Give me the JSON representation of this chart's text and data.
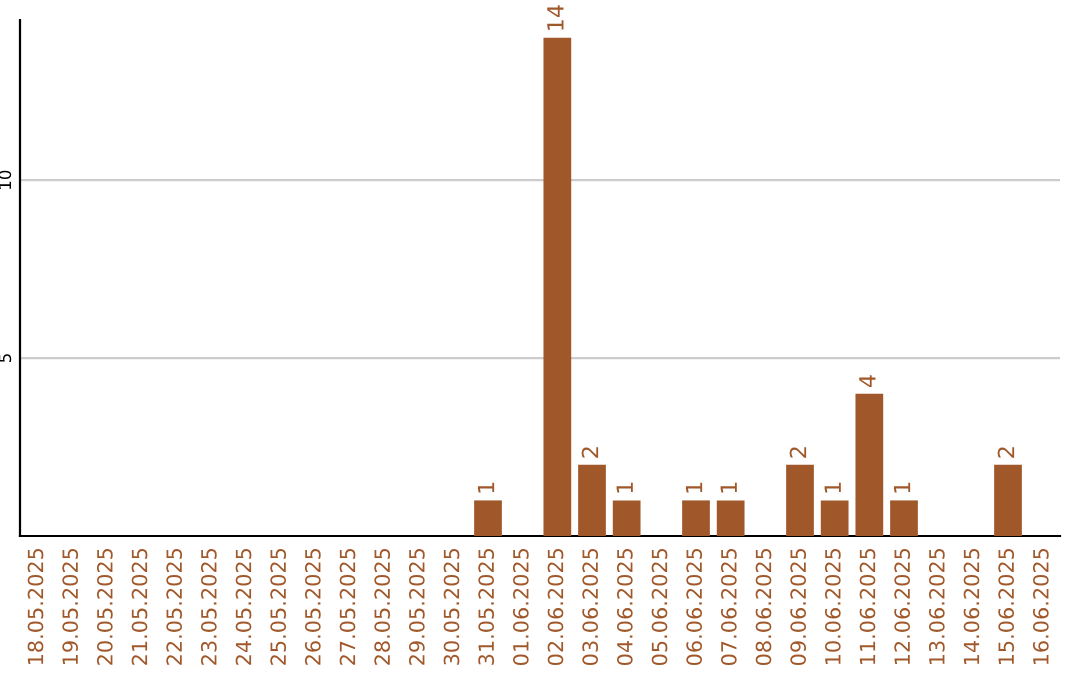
{
  "chart_data": {
    "type": "bar",
    "categories": [
      "18.05.2025",
      "19.05.2025",
      "20.05.2025",
      "21.05.2025",
      "22.05.2025",
      "23.05.2025",
      "24.05.2025",
      "25.05.2025",
      "26.05.2025",
      "27.05.2025",
      "28.05.2025",
      "29.05.2025",
      "30.05.2025",
      "31.05.2025",
      "01.06.2025",
      "02.06.2025",
      "03.06.2025",
      "04.06.2025",
      "05.06.2025",
      "06.06.2025",
      "07.06.2025",
      "08.06.2025",
      "09.06.2025",
      "10.06.2025",
      "11.06.2025",
      "12.06.2025",
      "13.06.2025",
      "14.06.2025",
      "15.06.2025",
      "16.06.2025"
    ],
    "values": [
      0,
      0,
      0,
      0,
      0,
      0,
      0,
      0,
      0,
      0,
      0,
      0,
      0,
      1,
      0,
      14,
      2,
      1,
      0,
      1,
      1,
      0,
      2,
      1,
      4,
      1,
      0,
      0,
      2,
      0
    ],
    "value_labels": [
      null,
      null,
      null,
      null,
      null,
      null,
      null,
      null,
      null,
      null,
      null,
      null,
      null,
      "1",
      null,
      "14",
      "2",
      "1",
      null,
      "1",
      "1",
      null,
      "2",
      "1",
      "4",
      "1",
      null,
      null,
      "2",
      null
    ],
    "color": "#a0582a",
    "ylim": [
      0,
      14.5
    ],
    "yticks": [
      5,
      10
    ],
    "grid": "y",
    "legend": false
  }
}
